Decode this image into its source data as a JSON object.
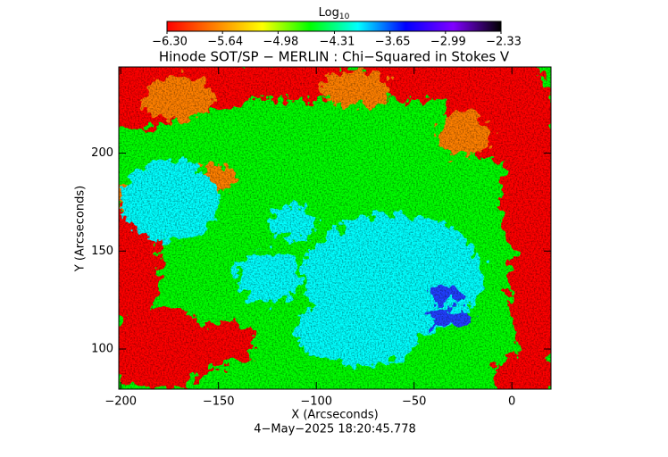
{
  "chart_data": {
    "type": "heatmap",
    "title": "Hinode SOT/SP − MERLIN : Chi−Squared in Stokes V",
    "x_label": "X (Arcseconds)",
    "y_label": "Y (Arcseconds)",
    "footer": "4−May−2025 18:20:45.778",
    "xlim": [
      -201,
      20
    ],
    "ylim": [
      79.5,
      244
    ],
    "xticks": [
      {
        "value": -200,
        "label": "−200"
      },
      {
        "value": -150,
        "label": "−150"
      },
      {
        "value": -100,
        "label": "−100"
      },
      {
        "value": -50,
        "label": "−50"
      },
      0
    ],
    "yticks": [
      100,
      150,
      200
    ],
    "colorbar": {
      "title": "Log",
      "title_sub": "10",
      "clim": [
        -6.3,
        -2.33
      ],
      "colormap": [
        "#ff0000",
        "#ff8000",
        "#ffff00",
        "#00ff00",
        "#00ffff",
        "#0000ff",
        "#8000ff",
        "#000000"
      ],
      "ticks": [
        {
          "value": -6.3,
          "label": "−6.30"
        },
        {
          "value": -5.64,
          "label": "−5.64"
        },
        {
          "value": -4.98,
          "label": "−4.98"
        },
        {
          "value": -4.31,
          "label": "−4.31"
        },
        {
          "value": -3.65,
          "label": "−3.65"
        },
        {
          "value": -2.99,
          "label": "−2.99"
        },
        {
          "value": -2.33,
          "label": "−2.33"
        }
      ]
    }
  }
}
